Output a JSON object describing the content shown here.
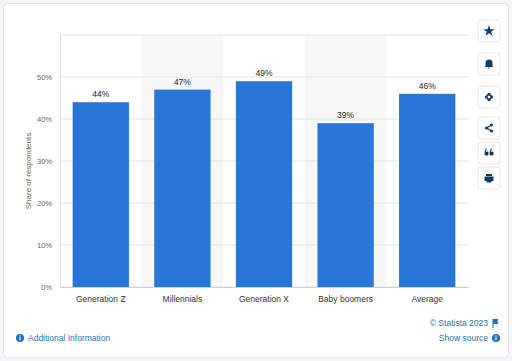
{
  "chart_data": {
    "type": "bar",
    "y_label": "Share of respondents",
    "categories": [
      "Generation Z",
      "Millennials",
      "Generation X",
      "Baby boomers",
      "Average"
    ],
    "values": [
      44,
      47,
      49,
      39,
      46
    ],
    "value_labels": [
      "44%",
      "47%",
      "49%",
      "39%",
      "46%"
    ],
    "color": "#2a76d8",
    "ylim": [
      0,
      60
    ],
    "yticks": [
      {
        "value": 0,
        "label": "0%"
      },
      {
        "value": 10,
        "label": "10%"
      },
      {
        "value": 20,
        "label": "20%"
      },
      {
        "value": 30,
        "label": "30%"
      },
      {
        "value": 40,
        "label": "40%"
      },
      {
        "value": 50,
        "label": "50%"
      }
    ],
    "grid": true,
    "data_labels": true
  },
  "footer": {
    "copyright": "© Statista 2023",
    "additional_info": "Additional Information",
    "show_source": "Show source"
  }
}
